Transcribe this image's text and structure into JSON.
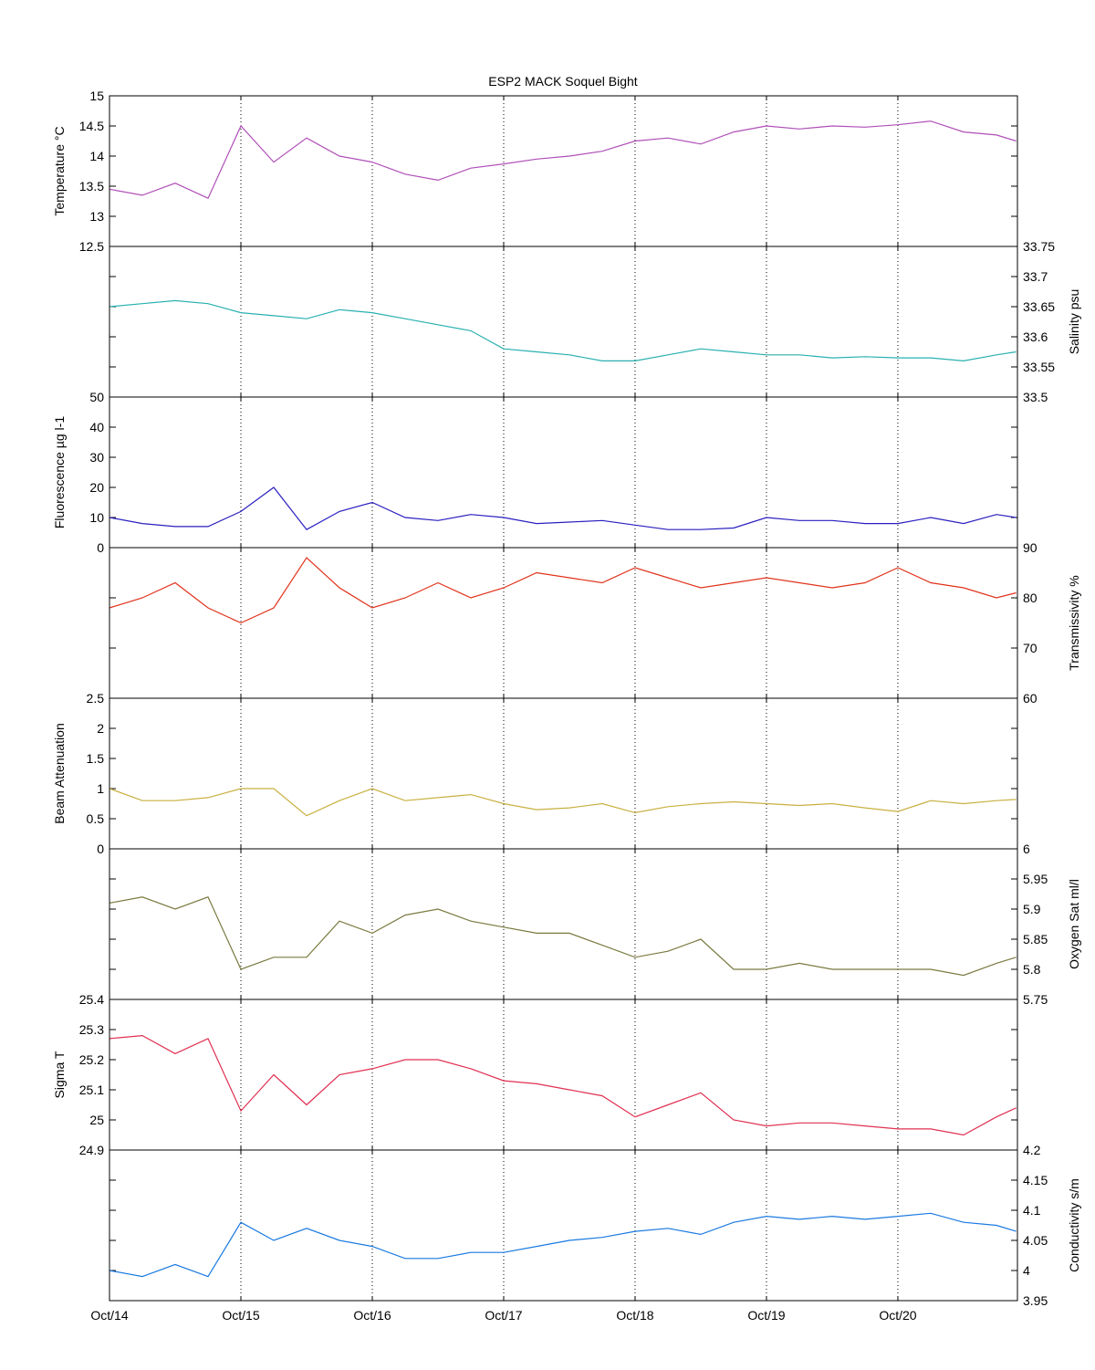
{
  "chart_data": {
    "type": "line",
    "title": "ESP2 MACK  Soquel Bight",
    "x_tick_labels": [
      "Oct/14",
      "Oct/15",
      "Oct/16",
      "Oct/17",
      "Oct/18",
      "Oct/19",
      "Oct/20"
    ],
    "x_unit": "days since Oct/14 00:00",
    "xlim": [
      0,
      6.91
    ],
    "grid": "vertical dotted lines at each day",
    "x": [
      0,
      0.25,
      0.5,
      0.75,
      1,
      1.25,
      1.5,
      1.75,
      2,
      2.25,
      2.5,
      2.75,
      3,
      3.25,
      3.5,
      3.75,
      4,
      4.25,
      4.5,
      4.75,
      5,
      5.25,
      5.5,
      5.75,
      6,
      6.25,
      6.5,
      6.75,
      6.9
    ],
    "panels": [
      {
        "name": "Temperature",
        "ylabel": "Temperature °C",
        "side": "left",
        "ylim": [
          12.5,
          15
        ],
        "ticks": [
          "12.5",
          "13",
          "13.5",
          "14",
          "14.5",
          "15"
        ],
        "color": "#b04fb8",
        "values": [
          13.45,
          13.35,
          13.55,
          13.3,
          14.5,
          13.9,
          14.3,
          14.0,
          13.9,
          13.7,
          13.6,
          13.8,
          13.87,
          13.95,
          14.0,
          14.08,
          14.25,
          14.3,
          14.2,
          14.4,
          14.5,
          14.45,
          14.5,
          14.48,
          14.52,
          14.58,
          14.4,
          14.35,
          14.25
        ]
      },
      {
        "name": "Salinity",
        "ylabel": "Salinity psu",
        "side": "right",
        "ylim": [
          33.5,
          33.75
        ],
        "ticks": [
          "33.5",
          "33.55",
          "33.6",
          "33.65",
          "33.7",
          "33.75"
        ],
        "color": "#2ab0b0",
        "values": [
          33.65,
          33.655,
          33.66,
          33.655,
          33.64,
          33.635,
          33.63,
          33.645,
          33.64,
          33.63,
          33.62,
          33.61,
          33.58,
          33.575,
          33.57,
          33.56,
          33.56,
          33.57,
          33.58,
          33.575,
          33.57,
          33.57,
          33.565,
          33.567,
          33.565,
          33.565,
          33.56,
          33.57,
          33.575
        ]
      },
      {
        "name": "Fluorescence",
        "ylabel": "Fluorescence µg l-1",
        "side": "left",
        "ylim": [
          0,
          50
        ],
        "ticks": [
          "0",
          "10",
          "20",
          "30",
          "40",
          "50"
        ],
        "color": "#2a1fbf",
        "values": [
          10,
          8,
          7,
          7,
          12,
          20,
          6,
          12,
          15,
          10,
          9,
          11,
          10,
          8,
          8.5,
          9,
          7.5,
          6,
          6,
          6.5,
          10,
          9,
          9,
          8,
          8,
          10,
          8,
          11,
          10
        ]
      },
      {
        "name": "Transmissivity",
        "ylabel": "Transmissivity %",
        "side": "right",
        "ylim": [
          60,
          90
        ],
        "ticks": [
          "60",
          "70",
          "80",
          "90"
        ],
        "color": "#e0321a",
        "values": [
          78,
          80,
          83,
          78,
          75,
          78,
          88,
          82,
          78,
          80,
          83,
          80,
          82,
          85,
          84,
          83,
          86,
          84,
          82,
          83,
          84,
          83,
          82,
          83,
          86,
          83,
          82,
          80,
          81
        ]
      },
      {
        "name": "Beam Attenuation",
        "ylabel": "Beam Attenuation",
        "side": "left",
        "ylim": [
          0,
          2.5
        ],
        "ticks": [
          "0",
          "0.5",
          "1",
          "1.5",
          "2",
          "2.5"
        ],
        "color": "#c8b040",
        "values": [
          1.0,
          0.8,
          0.8,
          0.85,
          1.0,
          1.0,
          0.55,
          0.8,
          1.0,
          0.8,
          0.85,
          0.9,
          0.75,
          0.65,
          0.68,
          0.75,
          0.6,
          0.7,
          0.75,
          0.78,
          0.75,
          0.72,
          0.75,
          0.68,
          0.62,
          0.8,
          0.75,
          0.8,
          0.82
        ]
      },
      {
        "name": "Oxygen Sat",
        "ylabel": "Oxygen Sat ml/l",
        "side": "right",
        "ylim": [
          5.75,
          6
        ],
        "ticks": [
          "5.75",
          "5.8",
          "5.85",
          "5.9",
          "5.95",
          "6"
        ],
        "color": "#7a7a40",
        "values": [
          5.91,
          5.92,
          5.9,
          5.92,
          5.8,
          5.82,
          5.82,
          5.88,
          5.86,
          5.89,
          5.9,
          5.88,
          5.87,
          5.86,
          5.86,
          5.84,
          5.82,
          5.83,
          5.85,
          5.8,
          5.8,
          5.81,
          5.8,
          5.8,
          5.8,
          5.8,
          5.79,
          5.81,
          5.82
        ]
      },
      {
        "name": "Sigma T",
        "ylabel": "Sigma T",
        "side": "left",
        "ylim": [
          24.9,
          25.4
        ],
        "ticks": [
          "24.9",
          "25",
          "25.1",
          "25.2",
          "25.3",
          "25.4"
        ],
        "color": "#e03050",
        "values": [
          25.27,
          25.28,
          25.22,
          25.27,
          25.03,
          25.15,
          25.05,
          25.15,
          25.17,
          25.2,
          25.2,
          25.17,
          25.13,
          25.12,
          25.1,
          25.08,
          25.01,
          25.05,
          25.09,
          25.0,
          24.98,
          24.99,
          24.99,
          24.98,
          24.97,
          24.97,
          24.95,
          25.01,
          25.04
        ]
      },
      {
        "name": "Conductivity",
        "ylabel": "Conductivity s/m",
        "side": "right",
        "ylim": [
          3.95,
          4.2
        ],
        "ticks": [
          "3.95",
          "4",
          "4.05",
          "4.1",
          "4.15",
          "4.2"
        ],
        "color": "#1a7ae0",
        "values": [
          4.0,
          3.99,
          4.01,
          3.99,
          4.08,
          4.05,
          4.07,
          4.05,
          4.04,
          4.02,
          4.02,
          4.03,
          4.03,
          4.04,
          4.05,
          4.055,
          4.065,
          4.07,
          4.06,
          4.08,
          4.09,
          4.085,
          4.09,
          4.085,
          4.09,
          4.095,
          4.08,
          4.075,
          4.065
        ]
      }
    ]
  }
}
